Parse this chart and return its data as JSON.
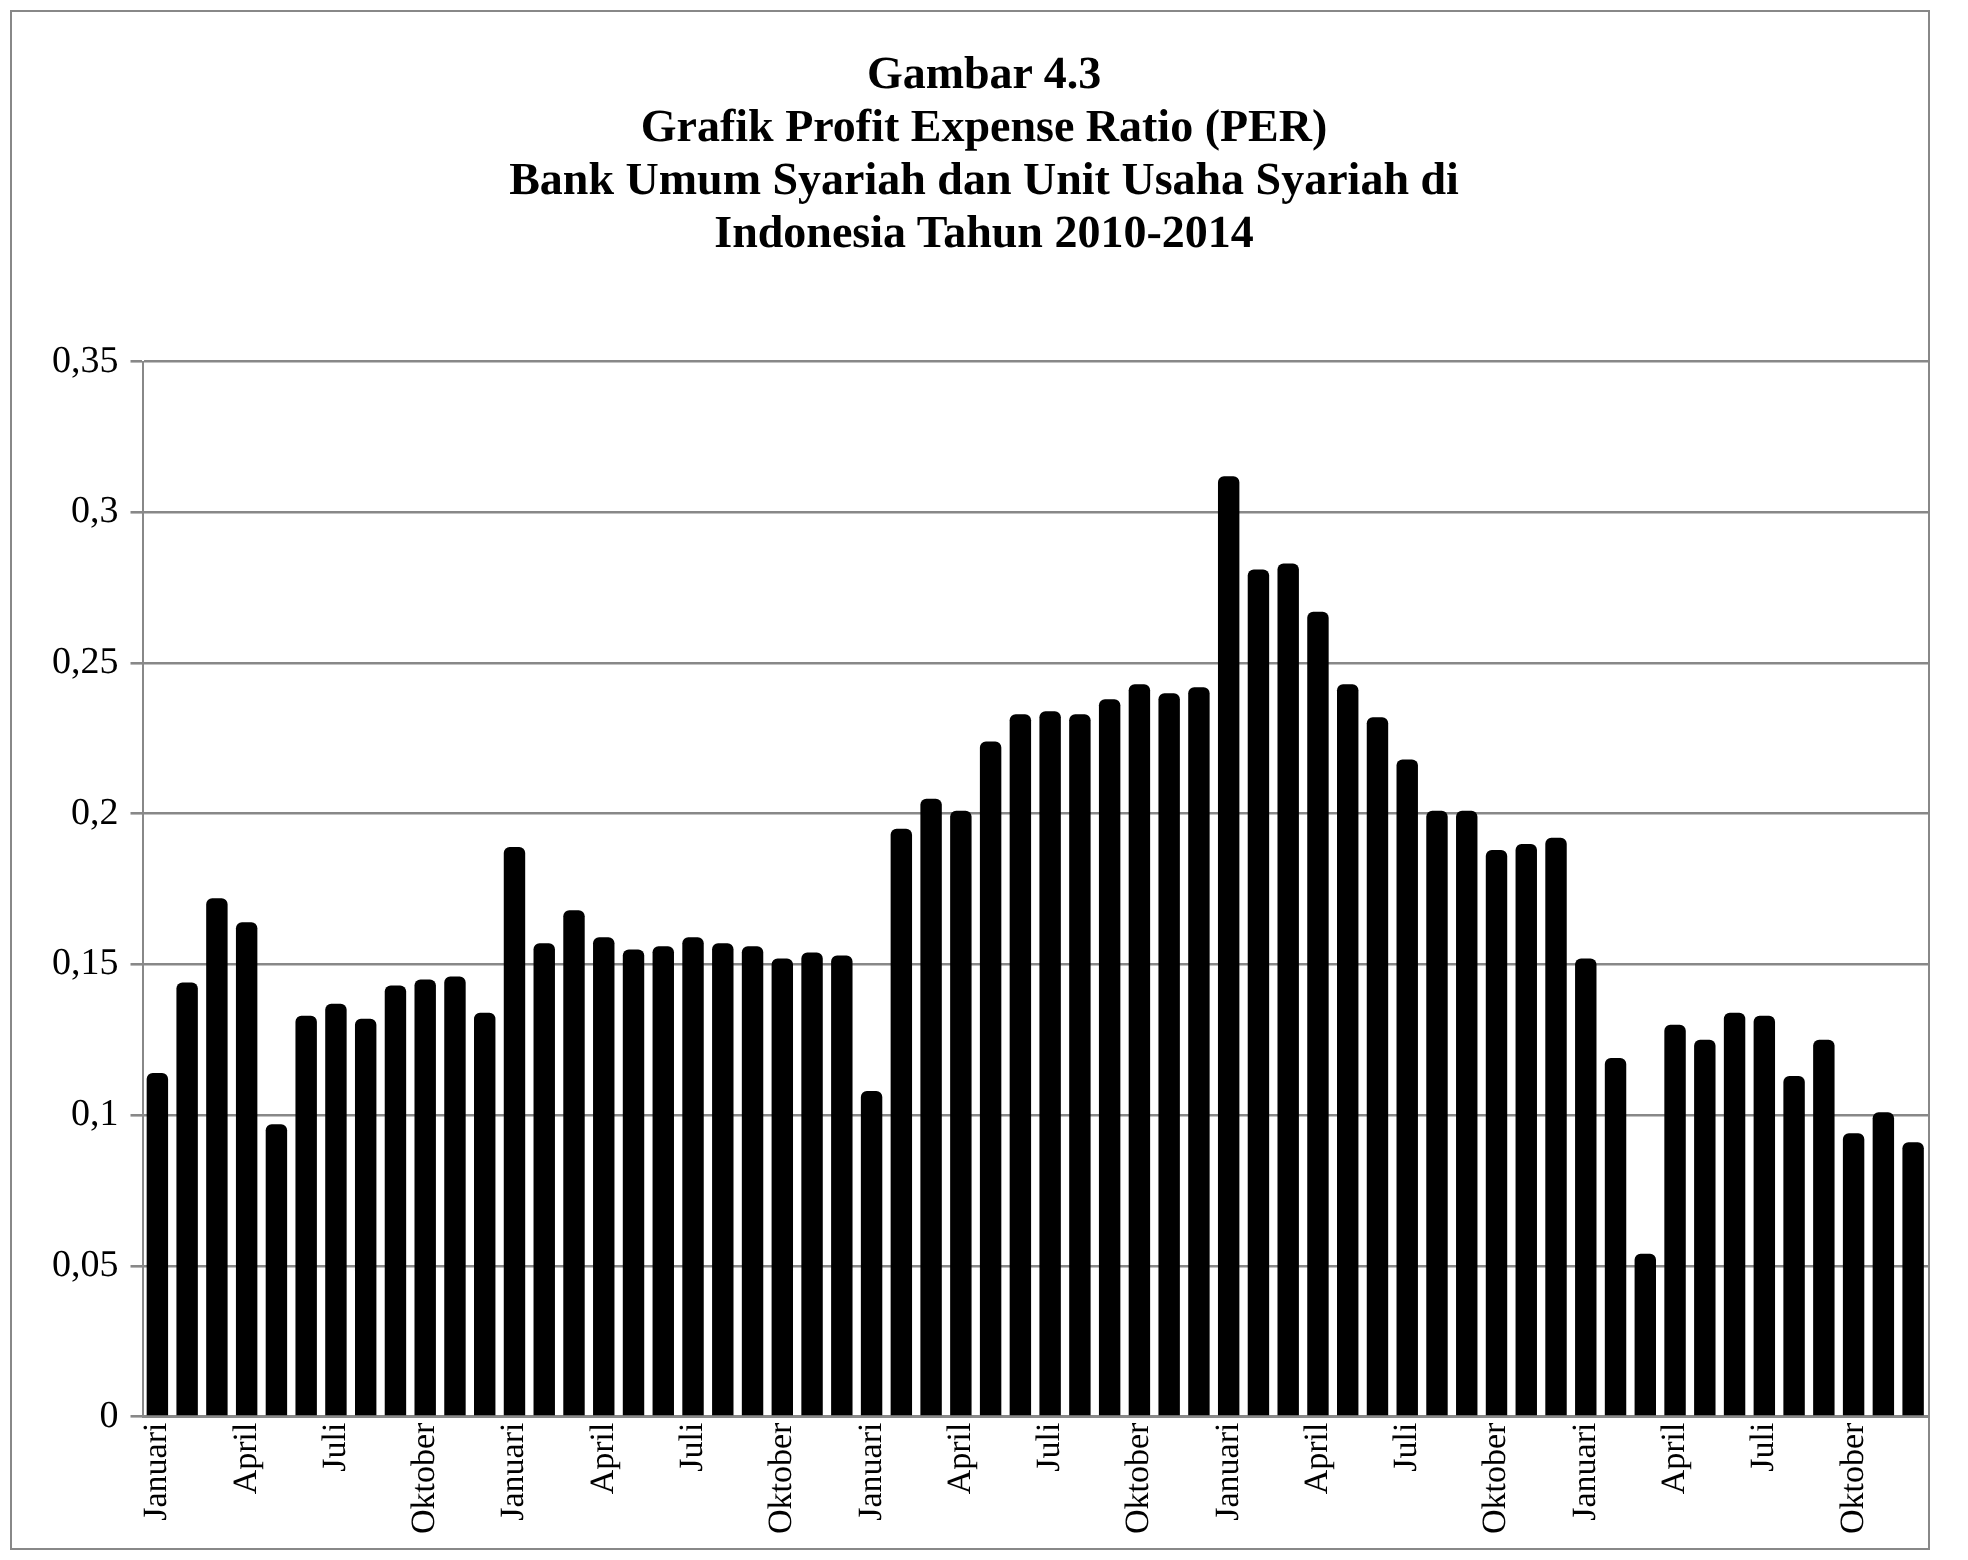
{
  "chart_data": {
    "type": "bar",
    "title": "Gambar 4.3\nGrafik Profit Expense Ratio (PER)\nBank Umum Syariah dan Unit Usaha Syariah di\nIndonesia Tahun 2010-2014",
    "categories": [
      "Januari",
      null,
      null,
      "April",
      null,
      null,
      "Juli",
      null,
      null,
      "Oktober",
      null,
      null,
      "Januari",
      null,
      null,
      "April",
      null,
      null,
      "Juli",
      null,
      null,
      "Oktober",
      null,
      null,
      "Januari",
      null,
      null,
      "April",
      null,
      null,
      "Juli",
      null,
      null,
      "Oktober",
      null,
      null,
      "Januari",
      null,
      null,
      "April",
      null,
      null,
      "Juli",
      null,
      null,
      "Oktober",
      null,
      null,
      "Januari",
      null,
      null,
      "April",
      null,
      null,
      "Juli",
      null,
      null,
      "Oktober",
      null,
      null
    ],
    "values": [
      0.114,
      0.144,
      0.172,
      0.164,
      0.097,
      0.133,
      0.137,
      0.132,
      0.143,
      0.145,
      0.146,
      0.134,
      0.189,
      0.157,
      0.168,
      0.159,
      0.155,
      0.156,
      0.159,
      0.157,
      0.156,
      0.152,
      0.154,
      0.153,
      0.108,
      0.195,
      0.205,
      0.201,
      0.224,
      0.233,
      0.234,
      0.233,
      0.238,
      0.243,
      0.24,
      0.242,
      0.312,
      0.281,
      0.283,
      0.267,
      0.243,
      0.232,
      0.218,
      0.201,
      0.201,
      0.188,
      0.19,
      0.192,
      0.152,
      0.119,
      0.054,
      0.13,
      0.125,
      0.134,
      0.133,
      0.113,
      0.125,
      0.094,
      0.101,
      0.091
    ],
    "color": "#000000",
    "ylim": [
      0,
      0.35
    ],
    "yticks": [
      0,
      {
        "value": 0.05,
        "label": "0,05"
      },
      {
        "value": 0.1,
        "label": "0,1"
      },
      {
        "value": 0.15,
        "label": "0,15"
      },
      {
        "value": 0.2,
        "label": "0,2"
      },
      {
        "value": 0.25,
        "label": "0,25"
      },
      {
        "value": 0.3,
        "label": "0,3"
      },
      {
        "value": 0.35,
        "label": "0,35"
      }
    ],
    "grid": "y"
  }
}
